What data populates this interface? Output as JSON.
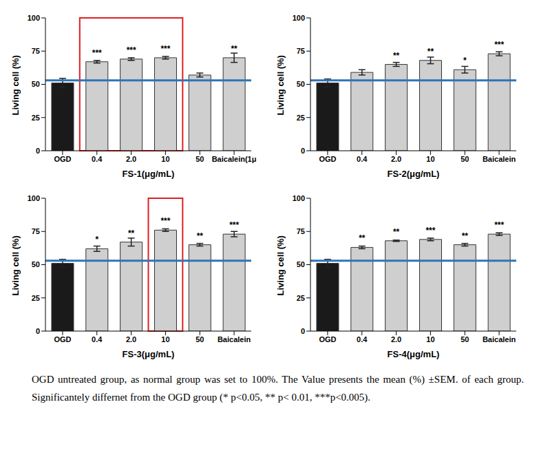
{
  "chart_data": [
    {
      "type": "bar",
      "categories": [
        "OGD",
        "0.4",
        "2.0",
        "10",
        "50",
        "Baicalein(1μ"
      ],
      "values": [
        51,
        67,
        69,
        70,
        57,
        70
      ],
      "errors": [
        3.5,
        1,
        1,
        1,
        1.5,
        3.5
      ],
      "significance": [
        "",
        "***",
        "***",
        "***",
        "",
        "**"
      ],
      "colors": [
        "#1a1a1a",
        "#cfcfcf",
        "#cfcfcf",
        "#cfcfcf",
        "#cfcfcf",
        "#cfcfcf"
      ],
      "xlabel": "FS-1(μg/mL)",
      "ylabel": "Living cell (%)",
      "ylim": [
        0,
        100
      ],
      "yticks": [
        0,
        25,
        50,
        75,
        100
      ],
      "reference_line": 53,
      "highlight": [
        "0.4",
        "10"
      ]
    },
    {
      "type": "bar",
      "categories": [
        "OGD",
        "0.4",
        "2.0",
        "10",
        "50",
        "Baicalein"
      ],
      "values": [
        51,
        59,
        65,
        68,
        61,
        73
      ],
      "errors": [
        3,
        2,
        1.5,
        2.5,
        2.5,
        1.5
      ],
      "significance": [
        "",
        "",
        "**",
        "**",
        "*",
        "***"
      ],
      "colors": [
        "#1a1a1a",
        "#cfcfcf",
        "#cfcfcf",
        "#cfcfcf",
        "#cfcfcf",
        "#cfcfcf"
      ],
      "xlabel": "FS-2(μg/mL)",
      "ylabel": "Living cell (%)",
      "ylim": [
        0,
        100
      ],
      "yticks": [
        0,
        25,
        50,
        75,
        100
      ],
      "reference_line": 53
    },
    {
      "type": "bar",
      "categories": [
        "OGD",
        "0.4",
        "2.0",
        "10",
        "50",
        "Baicalein"
      ],
      "values": [
        51,
        62,
        67,
        76,
        65,
        73
      ],
      "errors": [
        3,
        2,
        3,
        1,
        1,
        2
      ],
      "significance": [
        "",
        "*",
        "**",
        "***",
        "**",
        "***"
      ],
      "colors": [
        "#1a1a1a",
        "#cfcfcf",
        "#cfcfcf",
        "#cfcfcf",
        "#cfcfcf",
        "#cfcfcf"
      ],
      "xlabel": "FS-3(μg/mL)",
      "ylabel": "Living cell (%)",
      "ylim": [
        0,
        100
      ],
      "yticks": [
        0,
        25,
        50,
        75,
        100
      ],
      "reference_line": 53,
      "highlight": [
        "10",
        "10"
      ]
    },
    {
      "type": "bar",
      "categories": [
        "OGD",
        "0.4",
        "2.0",
        "10",
        "50",
        "Baicalein"
      ],
      "values": [
        51,
        63,
        68,
        69,
        65,
        73
      ],
      "errors": [
        3,
        1,
        0.5,
        1,
        1,
        1
      ],
      "significance": [
        "",
        "**",
        "**",
        "***",
        "**",
        "***"
      ],
      "colors": [
        "#1a1a1a",
        "#cfcfcf",
        "#cfcfcf",
        "#cfcfcf",
        "#cfcfcf",
        "#cfcfcf"
      ],
      "xlabel": "FS-4(μg/mL)",
      "ylabel": "Living cell (%)",
      "ylim": [
        0,
        100
      ],
      "yticks": [
        0,
        25,
        50,
        75,
        100
      ],
      "reference_line": 53
    }
  ],
  "caption": "OGD untreated group, as normal group was set to 100%. The Value presents the mean (%) ±SEM. of each group. Significantely differnet from the OGD group (* p<0.05, ** p< 0.01, ***p<0.005)."
}
